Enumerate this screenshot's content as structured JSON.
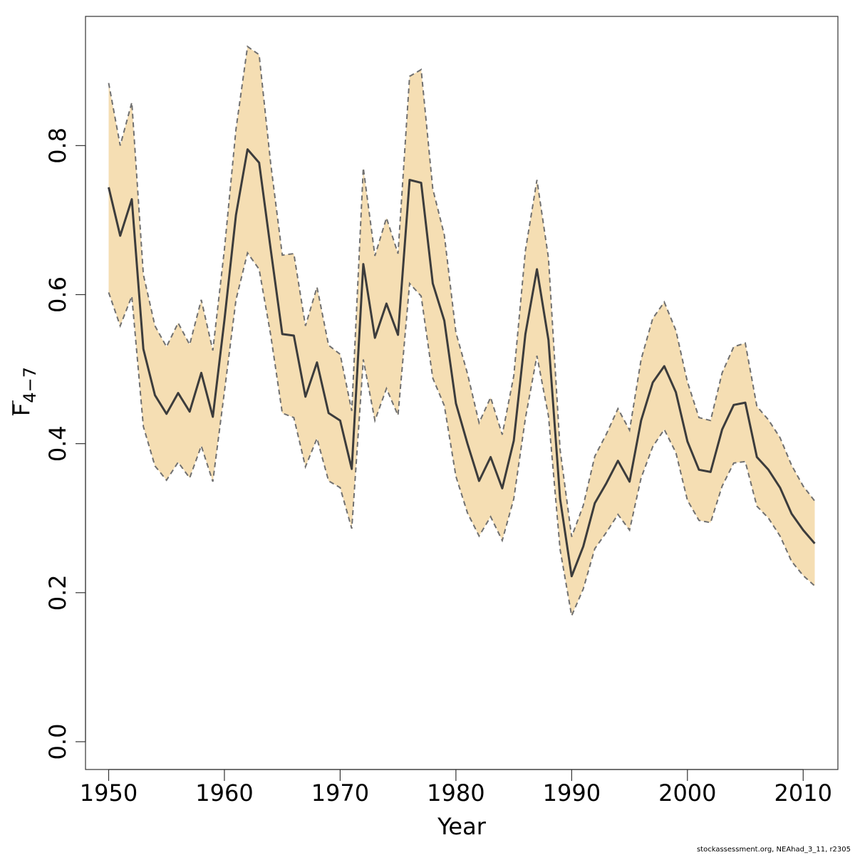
{
  "chart_data": {
    "type": "area",
    "xlabel": "Year",
    "ylabel": "F",
    "ylabel_subscript": "4−7",
    "xlim": [
      1948,
      2013
    ],
    "ylim": [
      -0.0373,
      0.9734
    ],
    "x_ticks": [
      1950,
      1960,
      1970,
      1980,
      1990,
      2000,
      2010
    ],
    "y_ticks": [
      0.0,
      0.2,
      0.4,
      0.6,
      0.8
    ],
    "x_tick_labels": [
      "1950",
      "1960",
      "1970",
      "1980",
      "1990",
      "2000",
      "2010"
    ],
    "y_tick_labels": [
      "0.0",
      "0.2",
      "0.4",
      "0.6",
      "0.8"
    ],
    "grid": false,
    "colors": {
      "band": "#f5deb3",
      "bounds": "#707070",
      "estimate": "#3c3c3c"
    },
    "x": [
      1950,
      1951,
      1952,
      1953,
      1954,
      1955,
      1956,
      1957,
      1958,
      1959,
      1960,
      1961,
      1962,
      1963,
      1964,
      1965,
      1966,
      1967,
      1968,
      1969,
      1970,
      1971,
      1972,
      1973,
      1974,
      1975,
      1976,
      1977,
      1978,
      1979,
      1980,
      1981,
      1982,
      1983,
      1984,
      1985,
      1986,
      1987,
      1988,
      1989,
      1990,
      1991,
      1992,
      1993,
      1994,
      1995,
      1996,
      1997,
      1998,
      1999,
      2000,
      2001,
      2002,
      2003,
      2004,
      2005,
      2006,
      2007,
      2008,
      2009,
      2010,
      2011
    ],
    "series": [
      {
        "role": "estimate",
        "values": [
          0.744,
          0.679,
          0.728,
          0.527,
          0.465,
          0.44,
          0.468,
          0.443,
          0.495,
          0.436,
          0.566,
          0.707,
          0.795,
          0.777,
          0.661,
          0.547,
          0.545,
          0.463,
          0.509,
          0.441,
          0.431,
          0.366,
          0.641,
          0.542,
          0.588,
          0.546,
          0.754,
          0.75,
          0.615,
          0.565,
          0.454,
          0.4,
          0.35,
          0.382,
          0.34,
          0.404,
          0.547,
          0.634,
          0.539,
          0.326,
          0.222,
          0.262,
          0.32,
          0.347,
          0.377,
          0.349,
          0.431,
          0.482,
          0.504,
          0.469,
          0.403,
          0.365,
          0.362,
          0.419,
          0.452,
          0.455,
          0.382,
          0.365,
          0.341,
          0.306,
          0.284,
          0.266
        ]
      },
      {
        "role": "upper",
        "values": [
          0.884,
          0.8,
          0.858,
          0.627,
          0.558,
          0.53,
          0.562,
          0.533,
          0.593,
          0.525,
          0.661,
          0.822,
          0.933,
          0.922,
          0.776,
          0.653,
          0.655,
          0.558,
          0.61,
          0.532,
          0.52,
          0.444,
          0.77,
          0.652,
          0.703,
          0.655,
          0.893,
          0.902,
          0.742,
          0.68,
          0.549,
          0.494,
          0.428,
          0.462,
          0.412,
          0.491,
          0.659,
          0.754,
          0.649,
          0.392,
          0.275,
          0.317,
          0.383,
          0.413,
          0.447,
          0.418,
          0.513,
          0.568,
          0.59,
          0.552,
          0.483,
          0.435,
          0.431,
          0.495,
          0.53,
          0.535,
          0.45,
          0.432,
          0.408,
          0.371,
          0.343,
          0.323
        ]
      },
      {
        "role": "lower",
        "values": [
          0.603,
          0.558,
          0.598,
          0.423,
          0.37,
          0.351,
          0.375,
          0.354,
          0.397,
          0.349,
          0.47,
          0.593,
          0.656,
          0.634,
          0.546,
          0.441,
          0.435,
          0.369,
          0.407,
          0.35,
          0.341,
          0.286,
          0.513,
          0.431,
          0.474,
          0.438,
          0.615,
          0.598,
          0.488,
          0.451,
          0.356,
          0.307,
          0.276,
          0.302,
          0.27,
          0.326,
          0.434,
          0.518,
          0.437,
          0.258,
          0.169,
          0.205,
          0.259,
          0.281,
          0.305,
          0.284,
          0.354,
          0.396,
          0.419,
          0.388,
          0.324,
          0.297,
          0.294,
          0.343,
          0.374,
          0.376,
          0.316,
          0.3,
          0.276,
          0.242,
          0.223,
          0.209
        ]
      }
    ]
  },
  "footer": "stockassessment.org, NEAhad_3_11, r2305"
}
